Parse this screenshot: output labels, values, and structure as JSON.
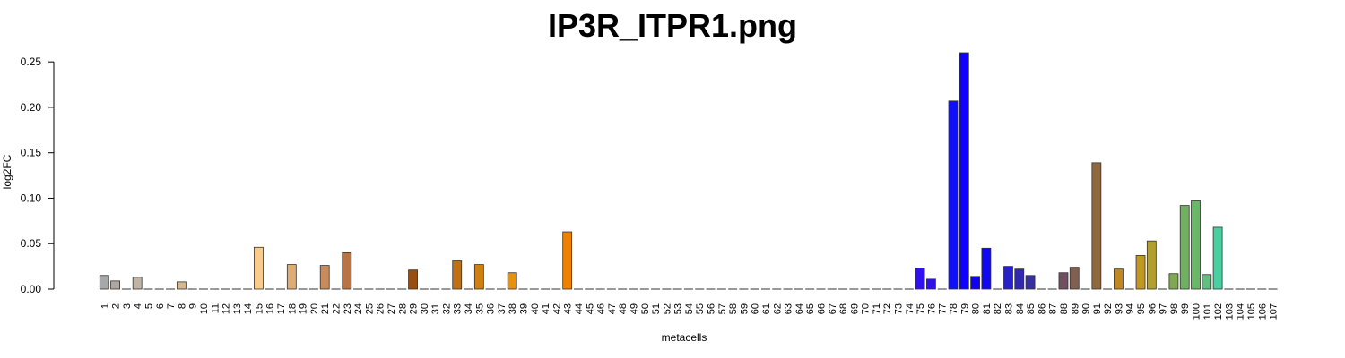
{
  "chart_data": {
    "type": "bar",
    "title": "IP3R_ITPR1.png",
    "xlabel": "metacells",
    "ylabel": "log2FC",
    "ylim": [
      0,
      0.26
    ],
    "yticks": [
      0.0,
      0.05,
      0.1,
      0.15,
      0.2,
      0.25
    ],
    "ytick_labels": [
      "0.00",
      "0.05",
      "0.10",
      "0.15",
      "0.20",
      "0.25"
    ],
    "grid": false,
    "legend": "none",
    "categories": [
      "1",
      "2",
      "3",
      "4",
      "5",
      "6",
      "7",
      "8",
      "9",
      "10",
      "11",
      "12",
      "13",
      "14",
      "15",
      "16",
      "17",
      "18",
      "19",
      "20",
      "21",
      "22",
      "23",
      "24",
      "25",
      "26",
      "27",
      "28",
      "29",
      "30",
      "31",
      "32",
      "33",
      "34",
      "35",
      "36",
      "37",
      "38",
      "39",
      "40",
      "41",
      "42",
      "43",
      "44",
      "45",
      "46",
      "47",
      "48",
      "49",
      "50",
      "51",
      "52",
      "53",
      "54",
      "55",
      "56",
      "57",
      "58",
      "59",
      "60",
      "61",
      "62",
      "63",
      "64",
      "65",
      "66",
      "67",
      "68",
      "69",
      "70",
      "71",
      "72",
      "73",
      "74",
      "75",
      "76",
      "77",
      "78",
      "79",
      "80",
      "81",
      "82",
      "83",
      "84",
      "85",
      "86",
      "87",
      "88",
      "89",
      "90",
      "91",
      "92",
      "93",
      "94",
      "95",
      "96",
      "97",
      "98",
      "99",
      "100",
      "101",
      "102",
      "103",
      "104",
      "105",
      "106",
      "107"
    ],
    "values": [
      0.015,
      0.009,
      0,
      0.013,
      0,
      0,
      0,
      0.008,
      0,
      0,
      0,
      0,
      0,
      0,
      0.046,
      0,
      0,
      0.027,
      0,
      0,
      0.026,
      0,
      0.04,
      0,
      0,
      0,
      0,
      0,
      0.021,
      0,
      0,
      0,
      0.031,
      0,
      0.027,
      0,
      0,
      0.018,
      0,
      0,
      0,
      0,
      0.063,
      0,
      0,
      0,
      0,
      0,
      0,
      0,
      0,
      0,
      0,
      0,
      0,
      0,
      0,
      0,
      0,
      0,
      0,
      0,
      0,
      0,
      0,
      0,
      0,
      0,
      0,
      0,
      0,
      0,
      0,
      0,
      0.023,
      0.011,
      0,
      0.207,
      0.26,
      0.014,
      0.045,
      0,
      0.025,
      0.022,
      0.015,
      0,
      0,
      0.018,
      0.024,
      0,
      0.139,
      0,
      0.022,
      0,
      0.037,
      0.053,
      0,
      0.017,
      0.092,
      0.097,
      0.016,
      0.068,
      0,
      0,
      0,
      0,
      0
    ],
    "colors": [
      "#a8a8a8",
      "#b0a8a0",
      "#b8b0a8",
      "#c0b4a4",
      "#c4b4a0",
      "#c8b49c",
      "#ccb498",
      "#d4b890",
      "#d8b888",
      "#dcb880",
      "#e0bc80",
      "#e4c080",
      "#e8c484",
      "#f0c888",
      "#f8cc8c",
      "#f0c088",
      "#e8b47c",
      "#e0ac74",
      "#d8a06c",
      "#d09868",
      "#c88c5c",
      "#c08454",
      "#b87444",
      "#b06c3c",
      "#a8643c",
      "#a05c2c",
      "#985424",
      "#904c1c",
      "#984e10",
      "#a05810",
      "#a86010",
      "#b06810",
      "#c07010",
      "#c87810",
      "#d08010",
      "#d88010",
      "#e08810",
      "#e89010",
      "#f09010",
      "#f09008",
      "#f08808",
      "#f08804",
      "#f08000",
      "#e87c00",
      "#e07800",
      "#d87400",
      "#d07000",
      "#c86c00",
      "#c06800",
      "#b86400",
      "#b06000",
      "#a85c00",
      "#a05800",
      "#985400",
      "#905000",
      "#884c00",
      "#804800",
      "#784400",
      "#704000",
      "#683c00",
      "#603800",
      "#583400",
      "#503000",
      "#482c00",
      "#402800",
      "#382400",
      "#302000",
      "#281c00",
      "#201800",
      "#181400",
      "#101000",
      "#080c00",
      "#000800",
      "#080040",
      "#3010f0",
      "#3010e8",
      "#1808f0",
      "#1010f8",
      "#1000ff",
      "#1000f8",
      "#1008f0",
      "#2010e0",
      "#2820c8",
      "#3028b0",
      "#3830a0",
      "#403880",
      "#584860",
      "#705060",
      "#806050",
      "#906040",
      "#906840",
      "#a07830",
      "#c08820",
      "#c09020",
      "#c09820",
      "#b0a030",
      "#a0a040",
      "#80a850",
      "#70b060",
      "#68b868",
      "#60c080",
      "#48d0a0",
      "#40d8b0",
      "#40d8c0",
      "#38d8c8",
      "#30d8d0",
      "#28d8d8"
    ]
  }
}
